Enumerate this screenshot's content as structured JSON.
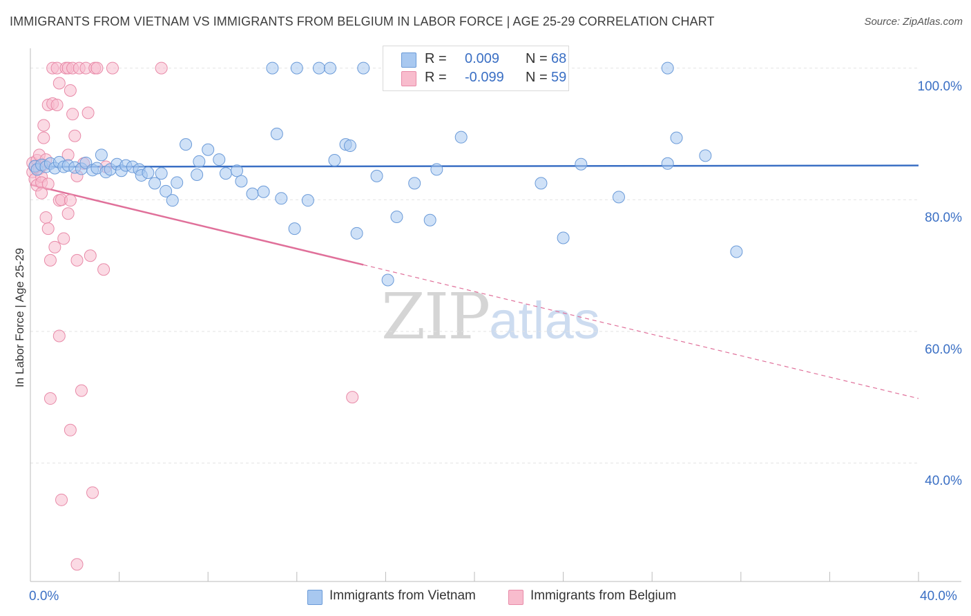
{
  "title": "IMMIGRANTS FROM VIETNAM VS IMMIGRANTS FROM BELGIUM IN LABOR FORCE | AGE 25-29 CORRELATION CHART",
  "source": "Source: ZipAtlas.com",
  "watermark": {
    "zip": "ZIP",
    "atlas": "atlas"
  },
  "legend": {
    "rows": [
      {
        "r_label": "R =",
        "r_value": "0.009",
        "n_label": "N =",
        "n_value": "68",
        "color": "#a8c8f0",
        "border": "#6a9ad8"
      },
      {
        "r_label": "R =",
        "r_value": "-0.099",
        "n_label": "N =",
        "n_value": "59",
        "color": "#f8bccd",
        "border": "#e88aa8"
      }
    ]
  },
  "colors": {
    "vietnam_fill": "#a8c8f0",
    "vietnam_stroke": "#6a9ad8",
    "vietnam_line": "#3a6fc4",
    "belgium_fill": "#f8bccd",
    "belgium_stroke": "#e88aa8",
    "belgium_line": "#e0709a",
    "grid": "#e3e3e3",
    "axis_text": "#3a6fc4"
  },
  "chart_data": {
    "type": "scatter",
    "xlabel": "",
    "ylabel": "In Labor Force | Age 25-29",
    "xlim": [
      0,
      40
    ],
    "ylim": [
      22,
      103
    ],
    "x_tick_labels": [
      "0.0%",
      "40.0%"
    ],
    "y_ticks": [
      {
        "value": 100,
        "label": "100.0%"
      },
      {
        "value": 80,
        "label": "80.0%"
      },
      {
        "value": 60,
        "label": "60.0%"
      },
      {
        "value": 40,
        "label": "40.0%"
      }
    ],
    "series": [
      {
        "name": "Immigrants from Vietnam",
        "trend": {
          "x0": 0.0,
          "y0": 85.0,
          "x1": 40.0,
          "y1": 85.2,
          "solid_to": 40.0
        },
        "points": [
          [
            0.2,
            85.1
          ],
          [
            0.3,
            84.6
          ],
          [
            0.5,
            85.3
          ],
          [
            0.7,
            85.0
          ],
          [
            0.9,
            85.5
          ],
          [
            1.1,
            84.8
          ],
          [
            1.3,
            85.7
          ],
          [
            1.5,
            85.0
          ],
          [
            1.7,
            85.2
          ],
          [
            2.0,
            84.9
          ],
          [
            2.3,
            84.7
          ],
          [
            2.5,
            85.6
          ],
          [
            2.8,
            84.5
          ],
          [
            3.0,
            84.8
          ],
          [
            3.2,
            86.8
          ],
          [
            3.4,
            84.2
          ],
          [
            3.6,
            84.6
          ],
          [
            3.9,
            85.4
          ],
          [
            4.1,
            84.4
          ],
          [
            4.3,
            85.2
          ],
          [
            4.6,
            85.0
          ],
          [
            4.9,
            84.6
          ],
          [
            5.0,
            83.7
          ],
          [
            5.3,
            84.1
          ],
          [
            5.6,
            82.5
          ],
          [
            5.9,
            84.0
          ],
          [
            6.1,
            81.3
          ],
          [
            6.4,
            79.9
          ],
          [
            6.6,
            82.6
          ],
          [
            7.0,
            88.4
          ],
          [
            7.5,
            83.8
          ],
          [
            7.6,
            85.8
          ],
          [
            8.0,
            87.6
          ],
          [
            8.5,
            86.1
          ],
          [
            8.8,
            84.0
          ],
          [
            9.3,
            84.4
          ],
          [
            9.5,
            82.8
          ],
          [
            10.0,
            80.9
          ],
          [
            10.5,
            81.2
          ],
          [
            10.9,
            100.0
          ],
          [
            11.1,
            90.0
          ],
          [
            11.3,
            80.2
          ],
          [
            11.9,
            75.6
          ],
          [
            12.0,
            100.0
          ],
          [
            12.5,
            79.9
          ],
          [
            13.0,
            100.0
          ],
          [
            13.5,
            100.0
          ],
          [
            13.7,
            86.0
          ],
          [
            14.2,
            88.4
          ],
          [
            14.4,
            88.2
          ],
          [
            14.7,
            74.9
          ],
          [
            15.0,
            100.0
          ],
          [
            15.6,
            83.6
          ],
          [
            16.1,
            67.8
          ],
          [
            16.5,
            77.4
          ],
          [
            17.3,
            82.5
          ],
          [
            18.0,
            76.9
          ],
          [
            18.3,
            84.6
          ],
          [
            19.4,
            89.5
          ],
          [
            20.2,
            100.0
          ],
          [
            23.0,
            82.5
          ],
          [
            24.0,
            74.2
          ],
          [
            24.8,
            85.4
          ],
          [
            26.5,
            80.4
          ],
          [
            28.7,
            85.5
          ],
          [
            28.7,
            100.0
          ],
          [
            29.1,
            89.4
          ],
          [
            30.4,
            86.7
          ],
          [
            31.8,
            72.1
          ]
        ]
      },
      {
        "name": "Immigrants from Belgium",
        "trend": {
          "x0": 0.0,
          "y0": 82.3,
          "x1": 40.0,
          "y1": 49.8,
          "solid_to": 15.0
        },
        "points": [
          [
            0.1,
            85.6
          ],
          [
            0.1,
            84.2
          ],
          [
            0.2,
            85.0
          ],
          [
            0.2,
            83.1
          ],
          [
            0.3,
            86.0
          ],
          [
            0.3,
            82.2
          ],
          [
            0.4,
            84.7
          ],
          [
            0.4,
            86.8
          ],
          [
            0.5,
            83.5
          ],
          [
            0.5,
            82.6
          ],
          [
            0.5,
            81.0
          ],
          [
            0.6,
            85.3
          ],
          [
            0.6,
            89.4
          ],
          [
            0.6,
            91.3
          ],
          [
            0.7,
            86.1
          ],
          [
            0.7,
            77.3
          ],
          [
            0.8,
            75.6
          ],
          [
            0.8,
            94.4
          ],
          [
            0.8,
            82.4
          ],
          [
            0.9,
            70.8
          ],
          [
            0.9,
            49.8
          ],
          [
            1.0,
            100.0
          ],
          [
            1.0,
            94.6
          ],
          [
            1.1,
            72.8
          ],
          [
            1.2,
            94.4
          ],
          [
            1.2,
            100.0
          ],
          [
            1.3,
            97.7
          ],
          [
            1.3,
            79.9
          ],
          [
            1.3,
            59.3
          ],
          [
            1.4,
            34.4
          ],
          [
            1.4,
            80.0
          ],
          [
            1.5,
            74.1
          ],
          [
            1.6,
            100.0
          ],
          [
            1.7,
            100.0
          ],
          [
            1.7,
            86.8
          ],
          [
            1.7,
            77.9
          ],
          [
            1.8,
            79.9
          ],
          [
            1.8,
            96.6
          ],
          [
            1.8,
            45.0
          ],
          [
            1.9,
            100.0
          ],
          [
            1.9,
            93.0
          ],
          [
            2.0,
            89.7
          ],
          [
            2.1,
            83.6
          ],
          [
            2.1,
            70.8
          ],
          [
            2.1,
            24.6
          ],
          [
            2.2,
            100.0
          ],
          [
            2.3,
            51.0
          ],
          [
            2.4,
            85.5
          ],
          [
            2.5,
            100.0
          ],
          [
            2.6,
            93.2
          ],
          [
            2.7,
            71.5
          ],
          [
            2.8,
            35.5
          ],
          [
            2.9,
            100.0
          ],
          [
            3.0,
            100.0
          ],
          [
            3.3,
            69.4
          ],
          [
            3.4,
            85.0
          ],
          [
            3.7,
            100.0
          ],
          [
            5.9,
            100.0
          ],
          [
            14.5,
            50.0
          ]
        ]
      }
    ]
  }
}
